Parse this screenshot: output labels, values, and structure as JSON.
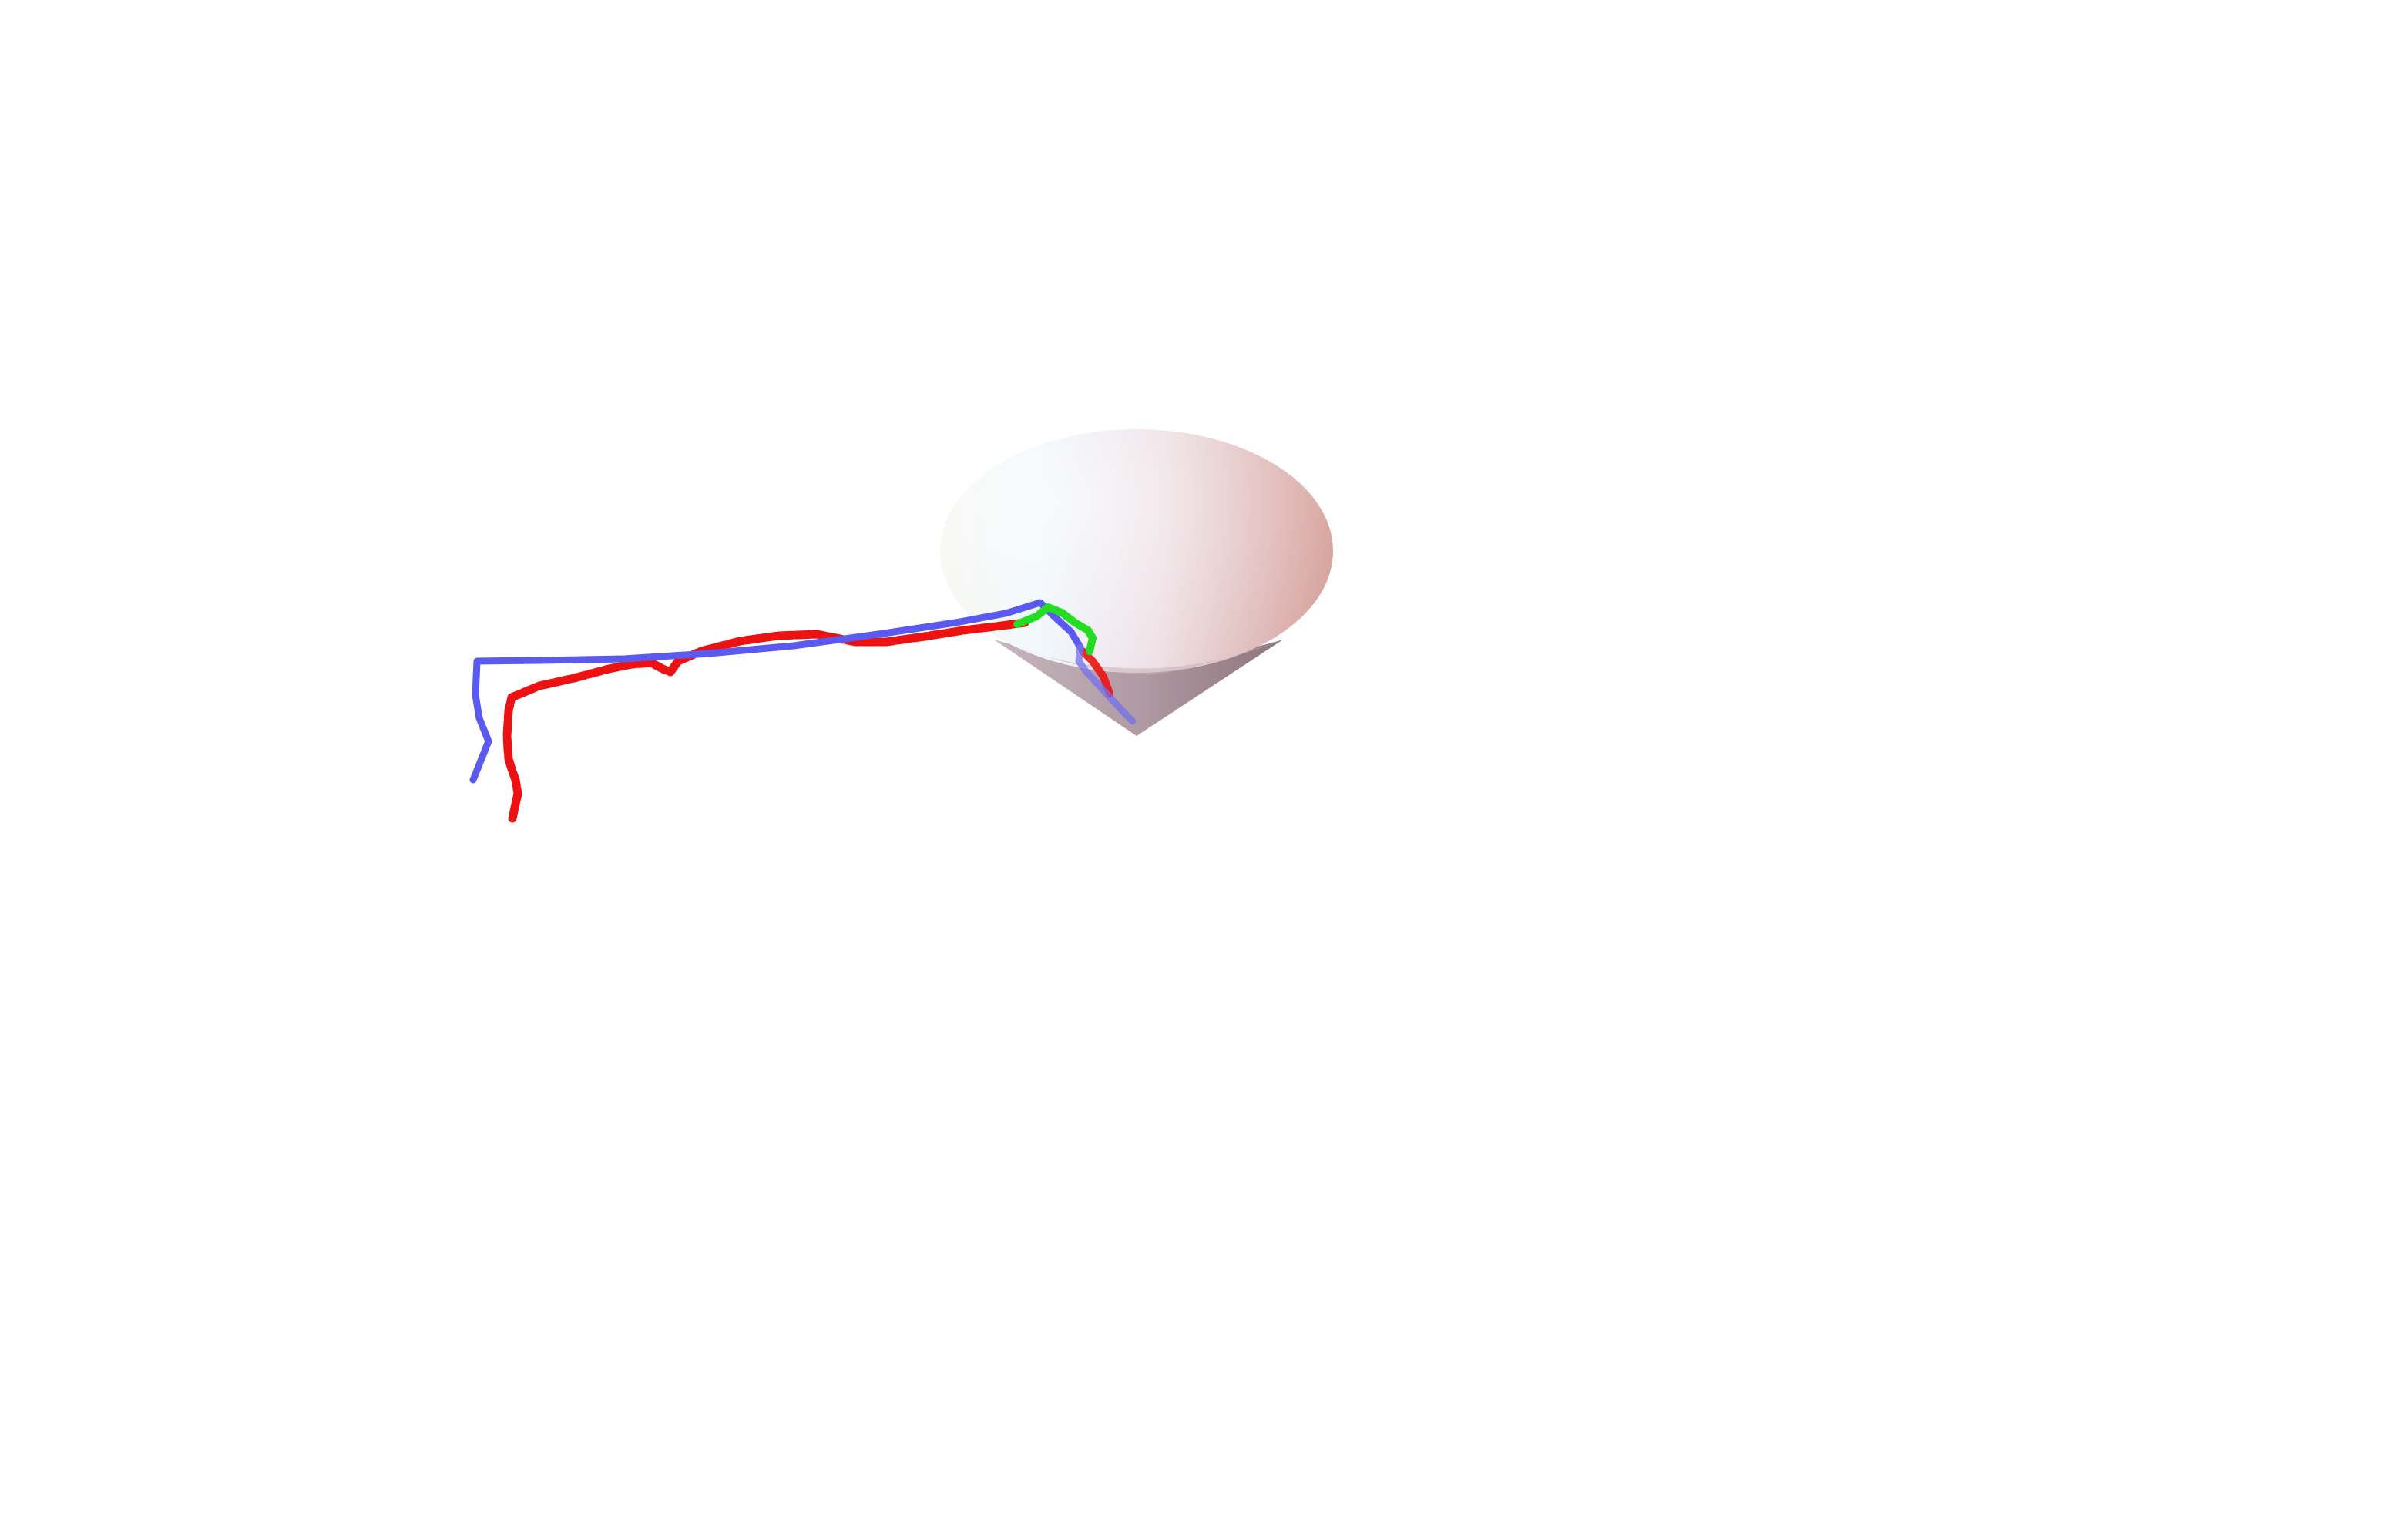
{
  "scene": {
    "background_color": "#ffffff",
    "object": "cone",
    "cone_colors": {
      "rim_left": "#f3f7f9",
      "rim_center": "#edf5fb",
      "rim_right": "#d9a5a0",
      "body_left": "#c2b0b8",
      "body_right": "#9a8189",
      "inner_rim": "#b9a7ac"
    },
    "trajectories": [
      {
        "name": "",
        "color": "#5a5af0",
        "style": "solid"
      },
      {
        "name": "",
        "color": "#ee1111",
        "style": "dotted-thick"
      },
      {
        "name": "",
        "color": "#22dd22",
        "style": "solid"
      }
    ]
  }
}
